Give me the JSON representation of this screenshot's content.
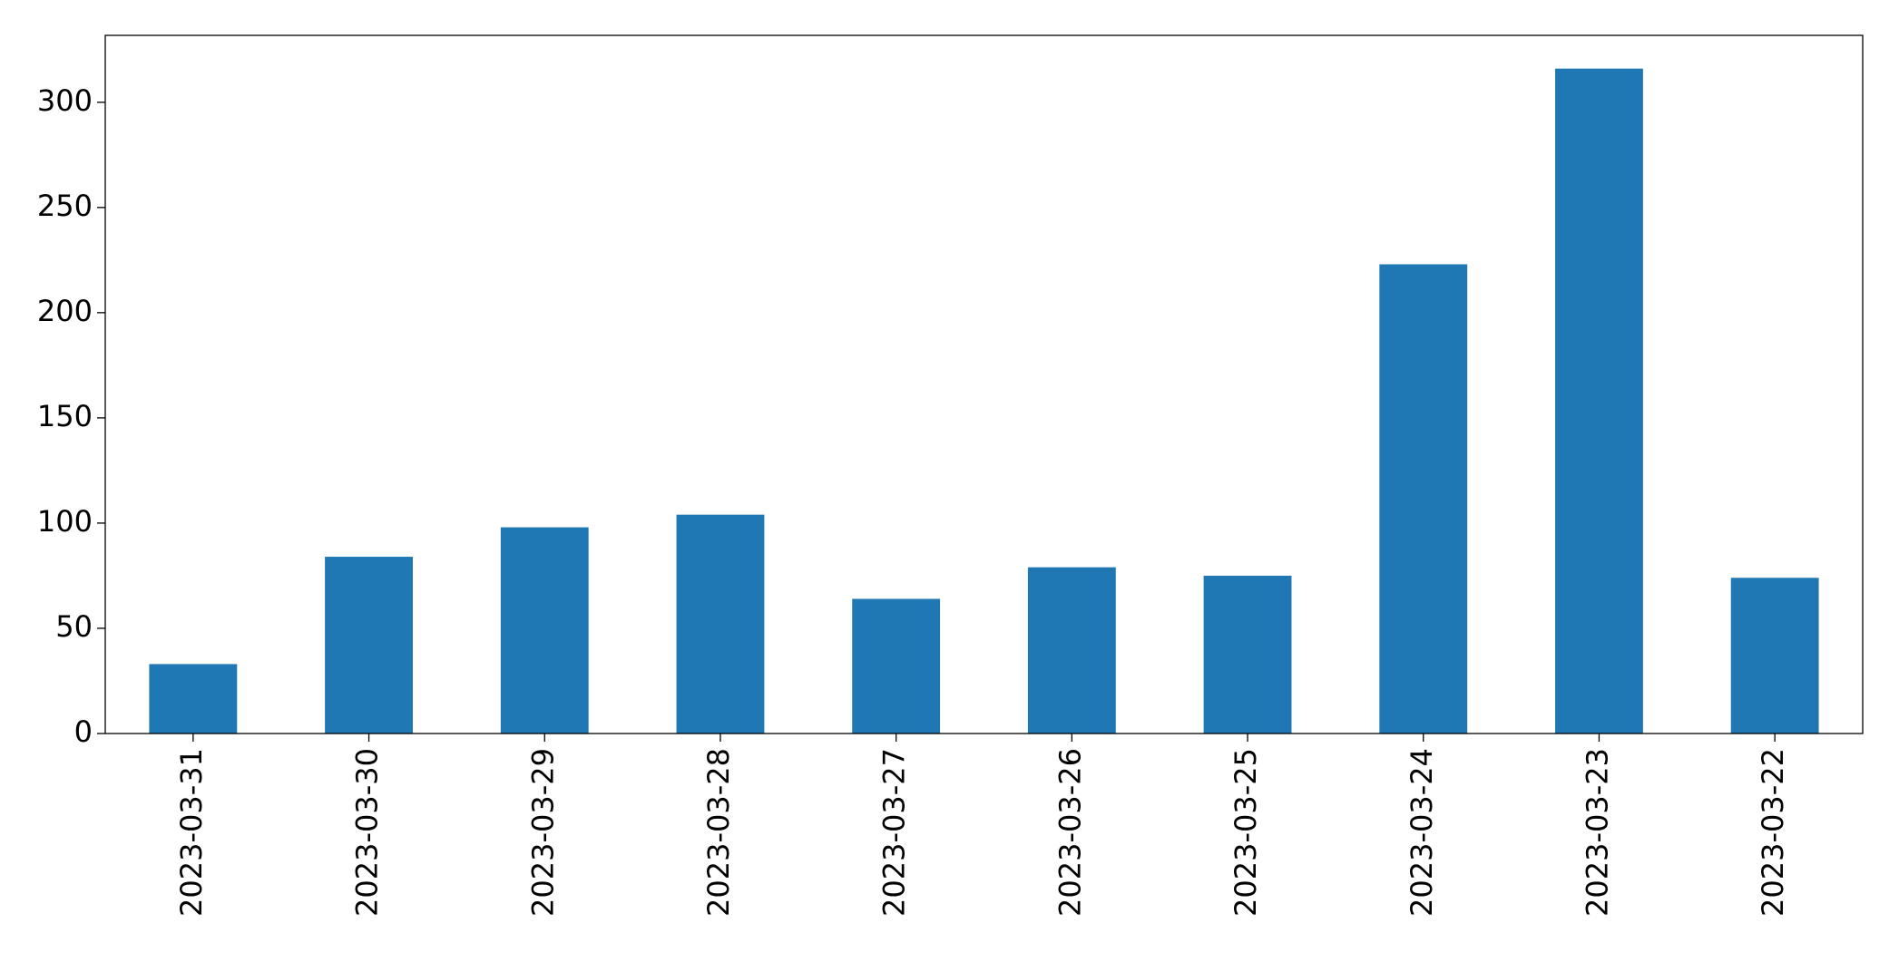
{
  "chart_data": {
    "type": "bar",
    "categories": [
      "2023-03-31",
      "2023-03-30",
      "2023-03-29",
      "2023-03-28",
      "2023-03-27",
      "2023-03-26",
      "2023-03-25",
      "2023-03-24",
      "2023-03-23",
      "2023-03-22"
    ],
    "values": [
      33,
      84,
      98,
      104,
      64,
      79,
      75,
      223,
      316,
      74
    ],
    "color": "#1f77b4",
    "ylim": [
      0,
      331.8
    ],
    "yticks": [
      0,
      50,
      100,
      150,
      200,
      250,
      300
    ],
    "grid": false
  }
}
